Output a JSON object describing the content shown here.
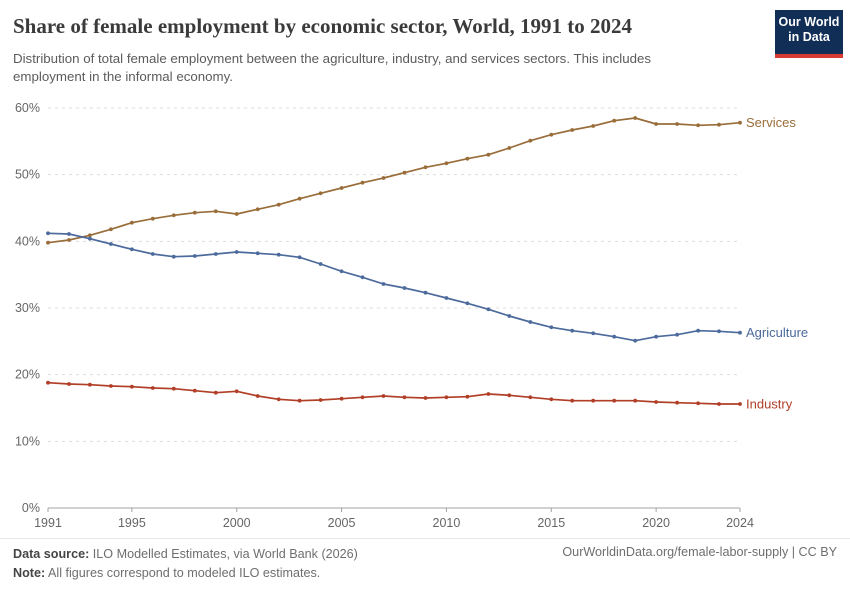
{
  "header": {
    "title": "Share of female employment by economic sector, World, 1991 to 2024",
    "subtitle_line1": "Distribution of total female employment between the agriculture, industry, and services sectors. This includes",
    "subtitle_line2": "employment in the informal economy.",
    "logo_line1": "Our World",
    "logo_line2": "in Data"
  },
  "chart_data": {
    "type": "line",
    "title": "Share of female employment by economic sector, World, 1991 to 2024",
    "x": [
      1991,
      1992,
      1993,
      1994,
      1995,
      1996,
      1997,
      1998,
      1999,
      2000,
      2001,
      2002,
      2003,
      2004,
      2005,
      2006,
      2007,
      2008,
      2009,
      2010,
      2011,
      2012,
      2013,
      2014,
      2015,
      2016,
      2017,
      2018,
      2019,
      2020,
      2021,
      2022,
      2023,
      2024
    ],
    "series": [
      {
        "name": "Services",
        "color": "#996D39",
        "values": [
          39.8,
          40.2,
          40.9,
          41.8,
          42.8,
          43.4,
          43.9,
          44.3,
          44.5,
          44.1,
          44.8,
          45.5,
          46.4,
          47.2,
          48.0,
          48.8,
          49.5,
          50.3,
          51.1,
          51.7,
          52.4,
          53.0,
          54.0,
          55.1,
          56.0,
          56.7,
          57.3,
          58.1,
          58.5,
          57.6,
          57.6,
          57.4,
          57.5,
          57.8
        ]
      },
      {
        "name": "Agriculture",
        "color": "#4C6A9C",
        "values": [
          41.2,
          41.1,
          40.4,
          39.6,
          38.8,
          38.1,
          37.7,
          37.8,
          38.1,
          38.4,
          38.2,
          38.0,
          37.6,
          36.6,
          35.5,
          34.6,
          33.6,
          33.0,
          32.3,
          31.5,
          30.7,
          29.8,
          28.8,
          27.9,
          27.1,
          26.6,
          26.2,
          25.7,
          25.1,
          25.7,
          26.0,
          26.6,
          26.5,
          26.3
        ]
      },
      {
        "name": "Industry",
        "color": "#B13E26",
        "values": [
          18.8,
          18.6,
          18.5,
          18.3,
          18.2,
          18.0,
          17.9,
          17.6,
          17.3,
          17.5,
          16.8,
          16.3,
          16.1,
          16.2,
          16.4,
          16.6,
          16.8,
          16.6,
          16.5,
          16.6,
          16.7,
          17.1,
          16.9,
          16.6,
          16.3,
          16.1,
          16.1,
          16.1,
          16.1,
          15.9,
          15.8,
          15.7,
          15.6,
          15.6
        ]
      }
    ],
    "xlabel": "",
    "ylabel": "",
    "ylim": [
      0,
      60
    ],
    "yticks": [
      0,
      10,
      20,
      30,
      40,
      50,
      60
    ],
    "ytick_suffix": "%",
    "xticks": [
      1991,
      1995,
      2000,
      2005,
      2010,
      2015,
      2020,
      2024
    ],
    "grid": "horizontal-dashed",
    "legend_position": "end-labels-right"
  },
  "style": {
    "grid_color": "#dcdcdc",
    "axis_color": "#a3a3a3",
    "tick_label_color": "#666666"
  },
  "footer": {
    "source_label": "Data source:",
    "source_text": " ILO Modelled Estimates, via World Bank (2026)",
    "note_label": "Note:",
    "note_text": " All figures correspond to modeled ILO estimates.",
    "link": "OurWorldinData.org/female-labor-supply | CC BY"
  }
}
